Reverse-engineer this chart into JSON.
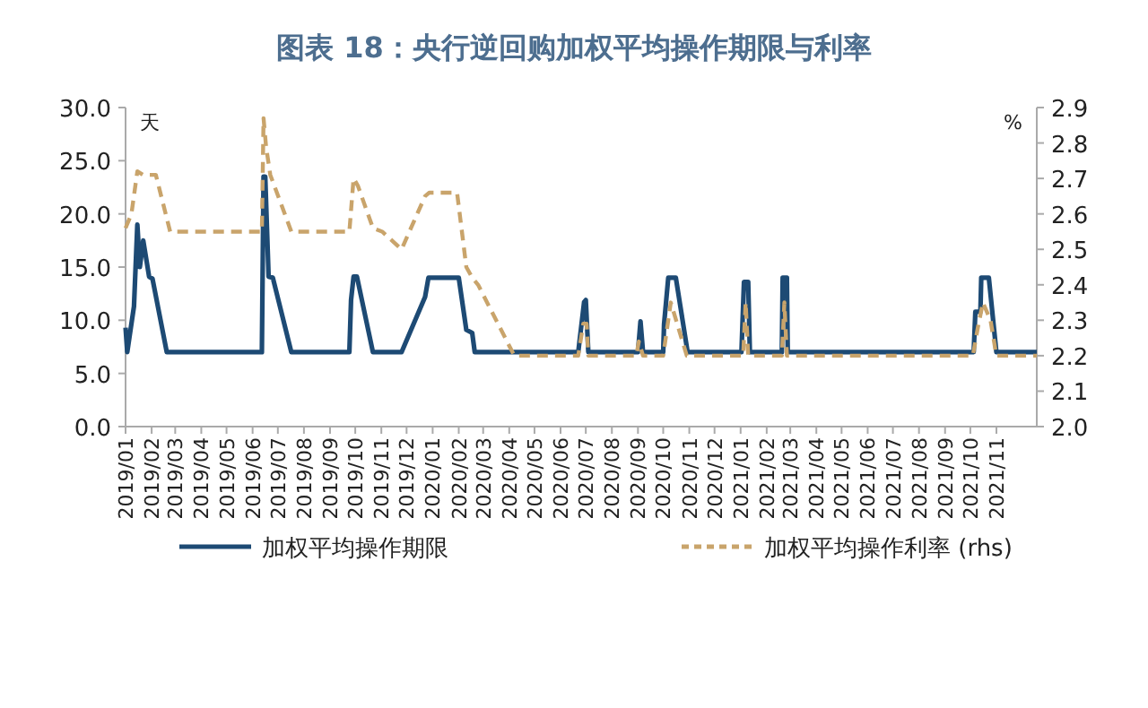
{
  "chart_data": {
    "type": "line",
    "title": "图表 18：央行逆回购加权平均操作期限与利率",
    "ylabel": "天",
    "y2label": "%",
    "xlim": [
      "2019-01-01",
      "2021-12-19"
    ],
    "xticks": [
      {
        "value": "2019-01",
        "label": "2019/01"
      },
      {
        "value": "2019-02",
        "label": "2019/02"
      },
      {
        "value": "2019-03",
        "label": "2019/03"
      },
      {
        "value": "2019-04",
        "label": "2019/04"
      },
      {
        "value": "2019-05",
        "label": "2019/05"
      },
      {
        "value": "2019-06",
        "label": "2019/06"
      },
      {
        "value": "2019-07",
        "label": "2019/07"
      },
      {
        "value": "2019-08",
        "label": "2019/08"
      },
      {
        "value": "2019-09",
        "label": "2019/09"
      },
      {
        "value": "2019-10",
        "label": "2019/10"
      },
      {
        "value": "2019-11",
        "label": "2019/11"
      },
      {
        "value": "2019-12",
        "label": "2019/12"
      },
      {
        "value": "2020-01",
        "label": "2020/01"
      },
      {
        "value": "2020-02",
        "label": "2020/02"
      },
      {
        "value": "2020-03",
        "label": "2020/03"
      },
      {
        "value": "2020-04",
        "label": "2020/04"
      },
      {
        "value": "2020-05",
        "label": "2020/05"
      },
      {
        "value": "2020-06",
        "label": "2020/06"
      },
      {
        "value": "2020-07",
        "label": "2020/07"
      },
      {
        "value": "2020-08",
        "label": "2020/08"
      },
      {
        "value": "2020-09",
        "label": "2020/09"
      },
      {
        "value": "2020-10",
        "label": "2020/10"
      },
      {
        "value": "2020-11",
        "label": "2020/11"
      },
      {
        "value": "2020-12",
        "label": "2020/12"
      },
      {
        "value": "2021-01",
        "label": "2021/01"
      },
      {
        "value": "2021-02",
        "label": "2021/02"
      },
      {
        "value": "2021-03",
        "label": "2021/03"
      },
      {
        "value": "2021-04",
        "label": "2021/04"
      },
      {
        "value": "2021-05",
        "label": "2021/05"
      },
      {
        "value": "2021-06",
        "label": "2021/06"
      },
      {
        "value": "2021-07",
        "label": "2021/07"
      },
      {
        "value": "2021-08",
        "label": "2021/08"
      },
      {
        "value": "2021-09",
        "label": "2021/09"
      },
      {
        "value": "2021-10",
        "label": "2021/10"
      },
      {
        "value": "2021-11",
        "label": "2021/11"
      }
    ],
    "ylim": [
      0,
      30
    ],
    "yticks": [
      {
        "value": 0,
        "label": "0.0"
      },
      {
        "value": 5,
        "label": "5.0"
      },
      {
        "value": 10,
        "label": "10.0"
      },
      {
        "value": 15,
        "label": "15.0"
      },
      {
        "value": 20,
        "label": "20.0"
      },
      {
        "value": 25,
        "label": "25.0"
      },
      {
        "value": 30,
        "label": "30.0"
      }
    ],
    "y2lim": [
      2,
      2.9
    ],
    "y2ticks": [
      {
        "value": 2,
        "label": "2.0"
      },
      {
        "value": 2.1,
        "label": "2.1"
      },
      {
        "value": 2.2,
        "label": "2.2"
      },
      {
        "value": 2.3,
        "label": "2.3"
      },
      {
        "value": 2.4,
        "label": "2.4"
      },
      {
        "value": 2.5,
        "label": "2.5"
      },
      {
        "value": 2.6,
        "label": "2.6"
      },
      {
        "value": 2.7,
        "label": "2.7"
      },
      {
        "value": 2.8,
        "label": "2.8"
      },
      {
        "value": 2.9,
        "label": "2.9"
      }
    ],
    "grid": false,
    "legend": "bottom",
    "series": [
      {
        "name": "加权平均操作期限",
        "color": "#1d4a74",
        "line_style": "solid",
        "x": [
          "2019-01-01",
          "2019-01-03",
          "2019-01-11",
          "2019-01-15",
          "2019-01-18",
          "2019-01-22",
          "2019-01-29",
          "2019-02-02",
          "2019-02-19",
          "2019-06-12",
          "2019-06-14",
          "2019-06-16",
          "2019-06-20",
          "2019-06-25",
          "2019-07-17",
          "2019-09-24",
          "2019-09-26",
          "2019-09-29",
          "2019-10-03",
          "2019-10-22",
          "2019-11-25",
          "2019-12-23",
          "2019-12-27",
          "2020-02-01",
          "2020-02-10",
          "2020-02-17",
          "2020-02-20",
          "2020-06-22",
          "2020-06-29",
          "2020-07-01",
          "2020-07-04",
          "2020-09-01",
          "2020-09-04",
          "2020-09-07",
          "2020-10-01",
          "2020-10-02",
          "2020-10-07",
          "2020-10-16",
          "2020-10-30",
          "2021-01-02",
          "2021-01-05",
          "2021-01-10",
          "2021-01-12",
          "2021-02-19",
          "2021-02-20",
          "2021-02-25",
          "2021-02-26",
          "2021-10-05",
          "2021-10-07",
          "2021-10-13",
          "2021-10-14",
          "2021-10-23",
          "2021-11-01",
          "2021-12-19"
        ],
        "values": [
          9.3,
          7,
          11.3,
          19,
          15,
          17.5,
          14.1,
          13.9,
          7,
          7,
          23.5,
          23.5,
          14.1,
          14,
          7,
          7,
          11.9,
          14.1,
          14.1,
          7,
          7,
          12.2,
          14,
          14,
          9.1,
          8.8,
          7,
          7,
          11.7,
          11.9,
          7,
          7,
          9.9,
          7,
          7,
          9.6,
          14,
          14,
          7,
          7,
          13.6,
          13.6,
          7,
          7,
          14,
          14,
          7,
          7,
          10.8,
          10.8,
          14,
          14,
          7,
          7
        ]
      },
      {
        "name": "加权平均操作利率 (rhs)",
        "color": "#c9a46b",
        "line_style": "dashed",
        "axis": "y2",
        "x": [
          "2019-01-01",
          "2019-01-08",
          "2019-01-15",
          "2019-01-22",
          "2019-02-06",
          "2019-02-23",
          "2019-06-12",
          "2019-06-14",
          "2019-06-17",
          "2019-06-22",
          "2019-07-17",
          "2019-09-24",
          "2019-09-29",
          "2019-10-04",
          "2019-10-22",
          "2019-11-02",
          "2019-11-25",
          "2019-12-23",
          "2019-12-28",
          "2020-01-30",
          "2020-02-10",
          "2020-02-17",
          "2020-02-24",
          "2020-04-07",
          "2020-06-22",
          "2020-06-28",
          "2020-07-02",
          "2020-07-04",
          "2020-08-30",
          "2020-09-02",
          "2020-09-07",
          "2020-10-01",
          "2020-10-10",
          "2020-10-29",
          "2021-01-04",
          "2021-01-07",
          "2021-01-10",
          "2021-02-19",
          "2021-02-22",
          "2021-02-25",
          "2021-10-04",
          "2021-10-10",
          "2021-10-16",
          "2021-10-25",
          "2021-11-01",
          "2021-12-19"
        ],
        "values": [
          2.56,
          2.6,
          2.72,
          2.71,
          2.71,
          2.55,
          2.55,
          2.87,
          2.79,
          2.71,
          2.55,
          2.55,
          2.7,
          2.68,
          2.56,
          2.55,
          2.5,
          2.65,
          2.66,
          2.66,
          2.45,
          2.42,
          2.4,
          2.2,
          2.2,
          2.29,
          2.29,
          2.2,
          2.2,
          2.24,
          2.2,
          2.2,
          2.35,
          2.2,
          2.2,
          2.35,
          2.2,
          2.2,
          2.35,
          2.2,
          2.2,
          2.28,
          2.35,
          2.3,
          2.2,
          2.2
        ]
      }
    ]
  }
}
